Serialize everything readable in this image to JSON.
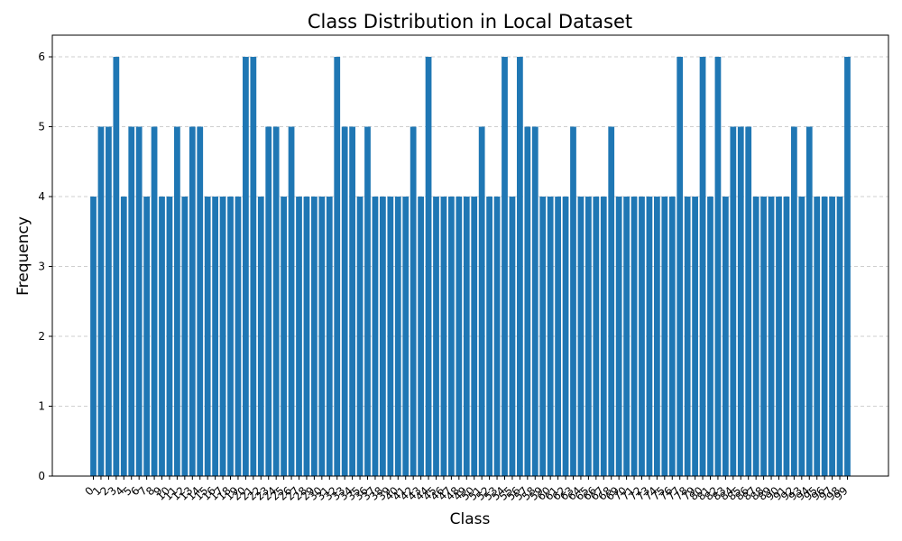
{
  "chart_data": {
    "type": "bar",
    "title": "Class Distribution in Local Dataset",
    "xlabel": "Class",
    "ylabel": "Frequency",
    "categories": [
      0,
      1,
      2,
      3,
      4,
      5,
      6,
      7,
      8,
      9,
      10,
      11,
      12,
      13,
      14,
      15,
      16,
      17,
      18,
      19,
      20,
      21,
      22,
      23,
      24,
      25,
      26,
      27,
      28,
      29,
      30,
      31,
      32,
      33,
      34,
      35,
      36,
      37,
      38,
      39,
      40,
      41,
      42,
      43,
      44,
      45,
      46,
      47,
      48,
      49,
      50,
      51,
      52,
      53,
      54,
      55,
      56,
      57,
      58,
      59,
      60,
      61,
      62,
      63,
      64,
      65,
      66,
      67,
      68,
      69,
      70,
      71,
      72,
      73,
      74,
      75,
      76,
      77,
      78,
      79,
      80,
      81,
      82,
      83,
      84,
      85,
      86,
      87,
      88,
      89,
      90,
      91,
      92,
      93,
      94,
      95,
      96,
      97,
      98,
      99
    ],
    "values": [
      4,
      5,
      5,
      6,
      4,
      5,
      5,
      4,
      5,
      4,
      4,
      5,
      4,
      5,
      5,
      4,
      4,
      4,
      4,
      4,
      6,
      6,
      4,
      5,
      5,
      4,
      5,
      4,
      4,
      4,
      4,
      4,
      6,
      5,
      5,
      4,
      5,
      4,
      4,
      4,
      4,
      4,
      5,
      4,
      6,
      4,
      4,
      4,
      4,
      4,
      4,
      5,
      4,
      4,
      6,
      4,
      6,
      5,
      5,
      4,
      4,
      4,
      4,
      5,
      4,
      4,
      4,
      4,
      5,
      4,
      4,
      4,
      4,
      4,
      4,
      4,
      4,
      6,
      4,
      4,
      6,
      4,
      6,
      4,
      5,
      5,
      5,
      4,
      4,
      4,
      4,
      4,
      5,
      4,
      5,
      4,
      4,
      4,
      4,
      6
    ],
    "color": "#1f77b4",
    "ylim": [
      0,
      6.31
    ],
    "yticks": [
      0,
      1,
      2,
      3,
      4,
      5,
      6
    ],
    "grid": true
  }
}
